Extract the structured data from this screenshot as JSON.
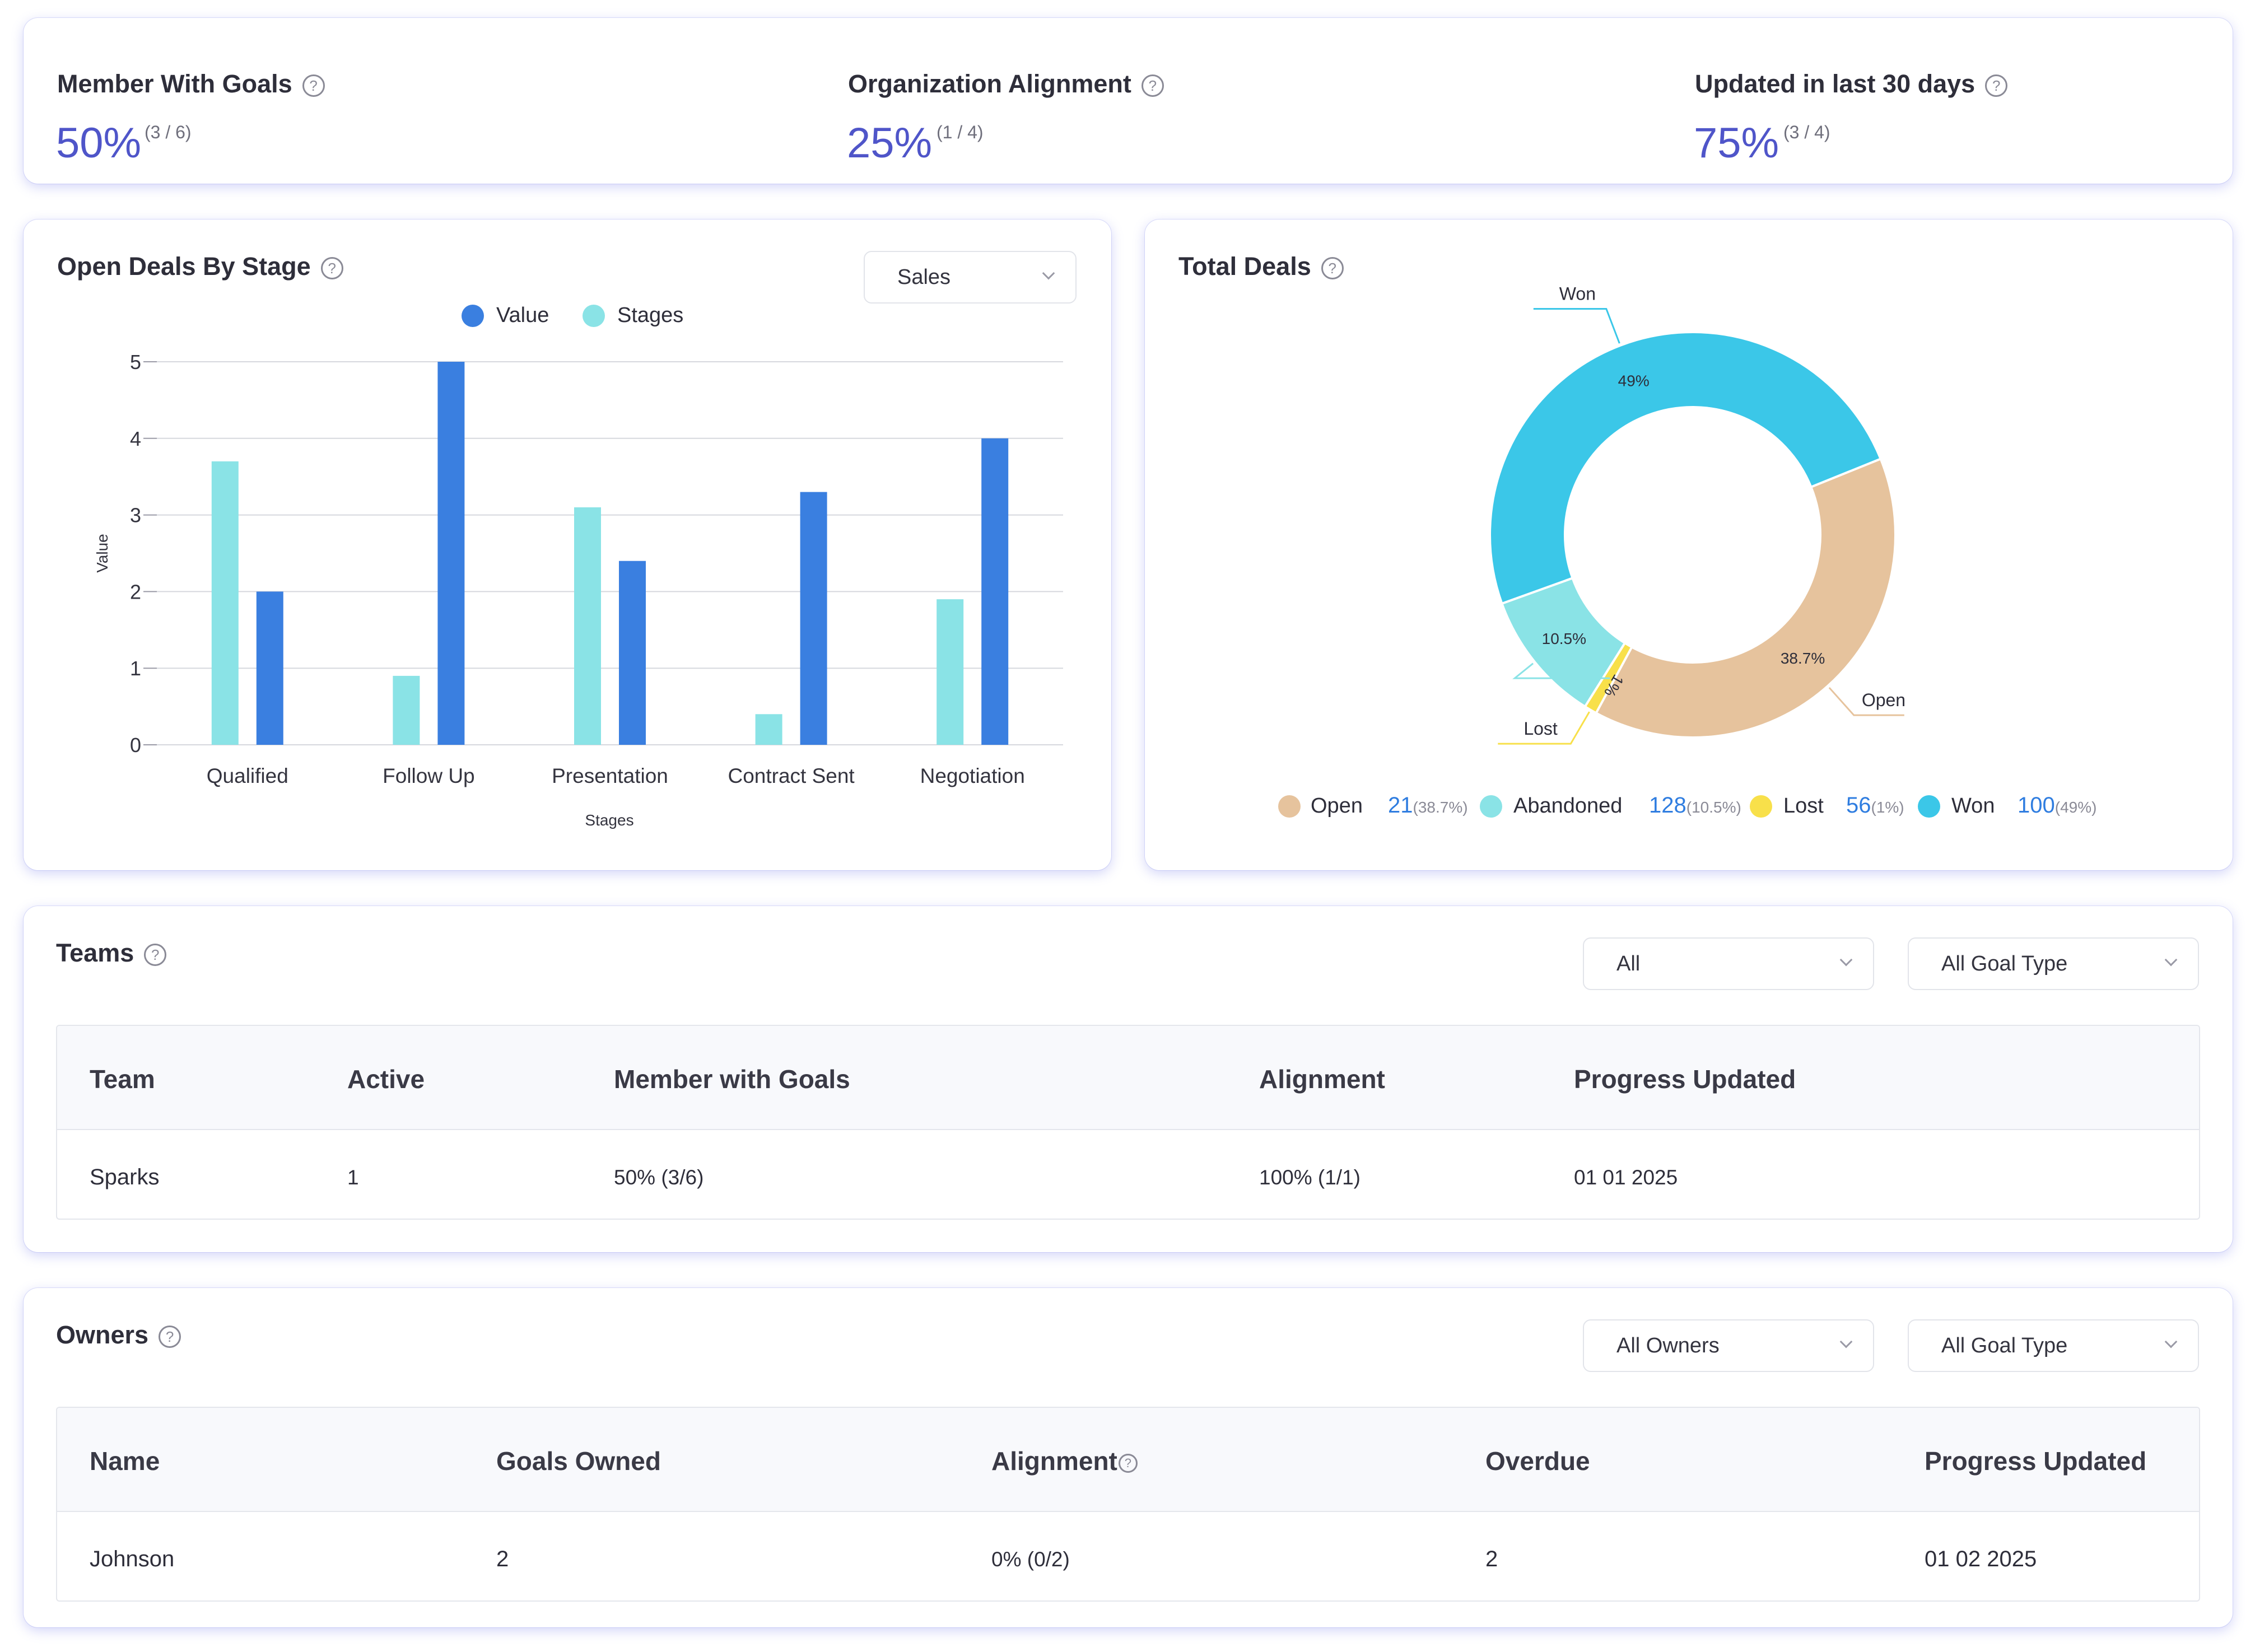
{
  "kpis": [
    {
      "label": "Member With Goals",
      "value": "50%",
      "ratio": "(3 / 6)"
    },
    {
      "label": "Organization Alignment",
      "value": "25%",
      "ratio": "(1 / 4)"
    },
    {
      "label": "Updated in last 30 days",
      "value": "75%",
      "ratio": "(3 / 4)"
    }
  ],
  "help_glyph": "?",
  "open_deals": {
    "title": "Open Deals By Stage",
    "select_value": "Sales",
    "legend": [
      {
        "label": "Value",
        "color": "#3a7fe0"
      },
      {
        "label": "Stages",
        "color": "#8ae3e6"
      }
    ]
  },
  "total_deals": {
    "title": "Total Deals",
    "legend": [
      {
        "label": "Open",
        "count": "21",
        "pct": "(38.7%)",
        "color": "#e6c39d"
      },
      {
        "label": "Abandoned",
        "count": "128",
        "pct": "(10.5%)",
        "color": "#8ae3e6"
      },
      {
        "label": "Lost",
        "count": "56",
        "pct": "(1%)",
        "color": "#f8e04a"
      },
      {
        "label": "Won",
        "count": "100",
        "pct": "(49%)",
        "color": "#3bc7e8"
      }
    ]
  },
  "teams": {
    "title": "Teams",
    "filter_value": "All",
    "goal_type_value": "All Goal Type",
    "columns": [
      "Team",
      "Active",
      "Member with Goals",
      "Alignment",
      "Progress Updated"
    ],
    "rows": [
      {
        "team": "Sparks",
        "active": "1",
        "members": "50% (3/6)",
        "alignment": "100% (1/1)",
        "progress": "01 01 2025"
      }
    ]
  },
  "owners": {
    "title": "Owners",
    "filter_value": "All Owners",
    "goal_type_value": "All Goal Type",
    "columns": [
      "Name",
      "Goals Owned",
      "Alignment",
      "Overdue",
      "Progress Updated"
    ],
    "rows": [
      {
        "name": "Johnson",
        "goals": "2",
        "alignment": "0% (0/2)",
        "overdue": "2",
        "progress": "01 02 2025"
      }
    ]
  },
  "chart_data": [
    {
      "type": "bar",
      "title": "Open Deals By Stage",
      "xlabel": "Stages",
      "ylabel": "Value",
      "categories": [
        "Qualified",
        "Follow Up",
        "Presentation",
        "Contract Sent",
        "Negotiation"
      ],
      "series": [
        {
          "name": "Stages",
          "color": "#8ae3e6",
          "values": [
            3.7,
            0.9,
            3.1,
            0.4,
            1.9
          ]
        },
        {
          "name": "Value",
          "color": "#3a7fe0",
          "values": [
            2.0,
            5.0,
            2.4,
            3.3,
            4.0
          ]
        }
      ],
      "ylim": [
        0,
        5
      ],
      "yticks": [
        "0",
        "1",
        "2",
        "3",
        "4",
        "5"
      ],
      "grid": true,
      "legend": "top"
    },
    {
      "type": "pie",
      "donut": true,
      "title": "Total Deals",
      "slices": [
        {
          "label": "Open",
          "value": 38.7,
          "pct_label": "38.7%",
          "color": "#e6c39d"
        },
        {
          "label": "Lost",
          "value": 1.0,
          "pct_label": "1%",
          "color": "#f8e04a"
        },
        {
          "label": "Abandoned",
          "value": 10.5,
          "pct_label": "10.5%",
          "color": "#8ae3e6"
        },
        {
          "label": "Won",
          "value": 49.0,
          "pct_label": "49%",
          "color": "#3bc7e8"
        }
      ],
      "outer_labels": [
        "Open",
        "Lost",
        "Won"
      ],
      "legend": "bottom"
    }
  ]
}
